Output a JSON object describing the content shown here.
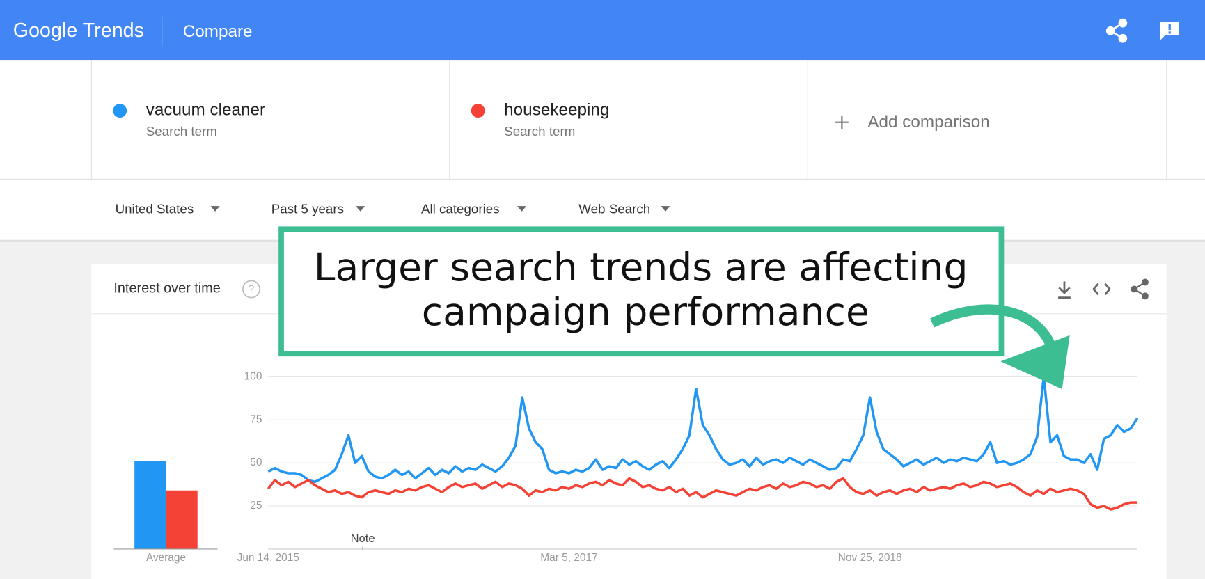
{
  "header": {
    "logo": "Google Trends",
    "page": "Compare"
  },
  "terms": [
    {
      "subtitle": "Search term"
    },
    {
      "subtitle": "Search term"
    }
  ],
  "add_comparison": "Add comparison",
  "filters": [
    "United States",
    "Past 5 years",
    "All categories",
    "Web Search"
  ],
  "card_title": "Interest over time",
  "annotation": [
    "Larger search trends are affecting",
    "campaign performance"
  ],
  "chart_data": [
    {
      "type": "bar",
      "categories": [
        "Average"
      ],
      "series": [
        {
          "color": "#2196f3",
          "values": [
            51
          ]
        },
        {
          "color": "#f44336",
          "values": [
            34
          ]
        }
      ],
      "ylim": [
        0,
        100
      ]
    },
    {
      "type": "line",
      "note": "Note",
      "categories": [
        "Jun 14, 2015",
        null,
        null,
        null,
        null,
        null,
        null,
        null,
        null,
        null,
        null,
        null,
        null,
        null,
        null,
        null,
        null,
        null,
        null,
        null,
        null,
        null,
        null,
        null,
        null,
        null,
        null,
        null,
        null,
        null,
        null,
        null,
        null,
        null,
        null,
        null,
        null,
        null,
        null,
        null,
        null,
        null,
        null,
        null,
        null,
        "Mar 5, 2017",
        null,
        null,
        null,
        null,
        null,
        null,
        null,
        null,
        null,
        null,
        null,
        null,
        null,
        null,
        null,
        null,
        null,
        null,
        null,
        null,
        null,
        null,
        null,
        null,
        null,
        null,
        null,
        null,
        null,
        null,
        null,
        null,
        null,
        null,
        null,
        null,
        null,
        null,
        null,
        null,
        null,
        null,
        null,
        null,
        "Nov 25, 2018",
        null,
        null,
        null,
        null,
        null,
        null,
        null,
        null,
        null,
        null,
        null,
        null,
        null,
        null,
        null,
        null,
        null,
        null,
        null,
        null,
        null,
        null,
        null,
        null,
        null,
        null,
        null,
        null,
        null,
        null,
        null,
        null,
        null,
        null,
        null,
        null,
        null,
        null,
        null,
        null
      ],
      "series": [
        {
          "name": "vacuum cleaner",
          "color": "#2196f3",
          "values": [
            45,
            47,
            45,
            44,
            44,
            43,
            40,
            39,
            41,
            43,
            46,
            55,
            66,
            50,
            54,
            45,
            42,
            41,
            43,
            46,
            43,
            45,
            41,
            44,
            47,
            43,
            46,
            44,
            48,
            45,
            47,
            46,
            49,
            47,
            45,
            48,
            53,
            60,
            88,
            70,
            62,
            58,
            46,
            44,
            45,
            44,
            46,
            45,
            47,
            52,
            46,
            48,
            47,
            52,
            49,
            51,
            48,
            46,
            49,
            51,
            47,
            52,
            58,
            66,
            93,
            72,
            66,
            58,
            52,
            49,
            50,
            52,
            48,
            53,
            49,
            51,
            52,
            50,
            53,
            51,
            49,
            52,
            50,
            48,
            46,
            47,
            52,
            51,
            58,
            66,
            88,
            68,
            58,
            55,
            52,
            48,
            50,
            52,
            49,
            51,
            53,
            50,
            52,
            51,
            53,
            52,
            51,
            55,
            62,
            50,
            51,
            49,
            50,
            52,
            55,
            65,
            100,
            62,
            66,
            54,
            52,
            52,
            50,
            55,
            46,
            64,
            66,
            72,
            68,
            70,
            76
          ]
        },
        {
          "name": "housekeeping",
          "color": "#f44336",
          "values": [
            35,
            40,
            37,
            39,
            36,
            38,
            40,
            37,
            35,
            33,
            34,
            32,
            33,
            31,
            30,
            33,
            34,
            33,
            32,
            34,
            33,
            35,
            34,
            36,
            37,
            35,
            33,
            36,
            38,
            36,
            37,
            38,
            35,
            37,
            39,
            36,
            38,
            37,
            35,
            31,
            34,
            33,
            35,
            34,
            36,
            35,
            37,
            36,
            38,
            39,
            37,
            40,
            38,
            37,
            41,
            39,
            36,
            37,
            35,
            34,
            36,
            33,
            35,
            31,
            33,
            30,
            32,
            34,
            33,
            32,
            31,
            33,
            35,
            34,
            36,
            37,
            35,
            38,
            36,
            37,
            39,
            38,
            36,
            37,
            35,
            39,
            41,
            36,
            33,
            32,
            34,
            31,
            33,
            34,
            32,
            34,
            35,
            33,
            36,
            34,
            35,
            36,
            35,
            37,
            38,
            36,
            37,
            39,
            38,
            36,
            37,
            38,
            36,
            33,
            31,
            34,
            32,
            35,
            33,
            34,
            35,
            34,
            32,
            26,
            24,
            25,
            23,
            24,
            26,
            27,
            27
          ]
        }
      ],
      "ylim": [
        0,
        100
      ],
      "yticks": [
        25,
        50,
        75,
        100
      ],
      "grid": true
    }
  ]
}
